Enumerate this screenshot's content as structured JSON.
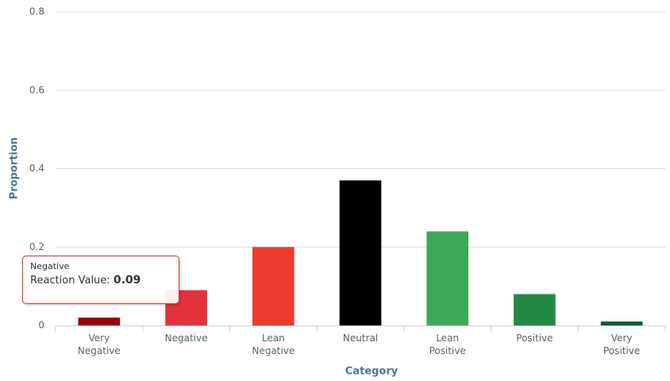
{
  "chart_data": {
    "type": "bar",
    "categories": [
      "Very Negative",
      "Negative",
      "Lean Negative",
      "Neutral",
      "Lean Positive",
      "Positive",
      "Very Positive"
    ],
    "values": [
      0.02,
      0.09,
      0.2,
      0.37,
      0.24,
      0.08,
      0.01
    ],
    "colors": [
      "#990012",
      "#e2323c",
      "#ee3b2f",
      "#000000",
      "#3fa95a",
      "#238a45",
      "#0a5e35"
    ],
    "ylim": [
      0,
      0.8
    ],
    "yticks": [
      0,
      0.2,
      0.4,
      0.6,
      0.8
    ],
    "grid": true,
    "y_axis_label": "Proportion",
    "x_axis_label": "Category",
    "tooltip": {
      "category_index": 1,
      "label": "Reaction Value:"
    }
  }
}
